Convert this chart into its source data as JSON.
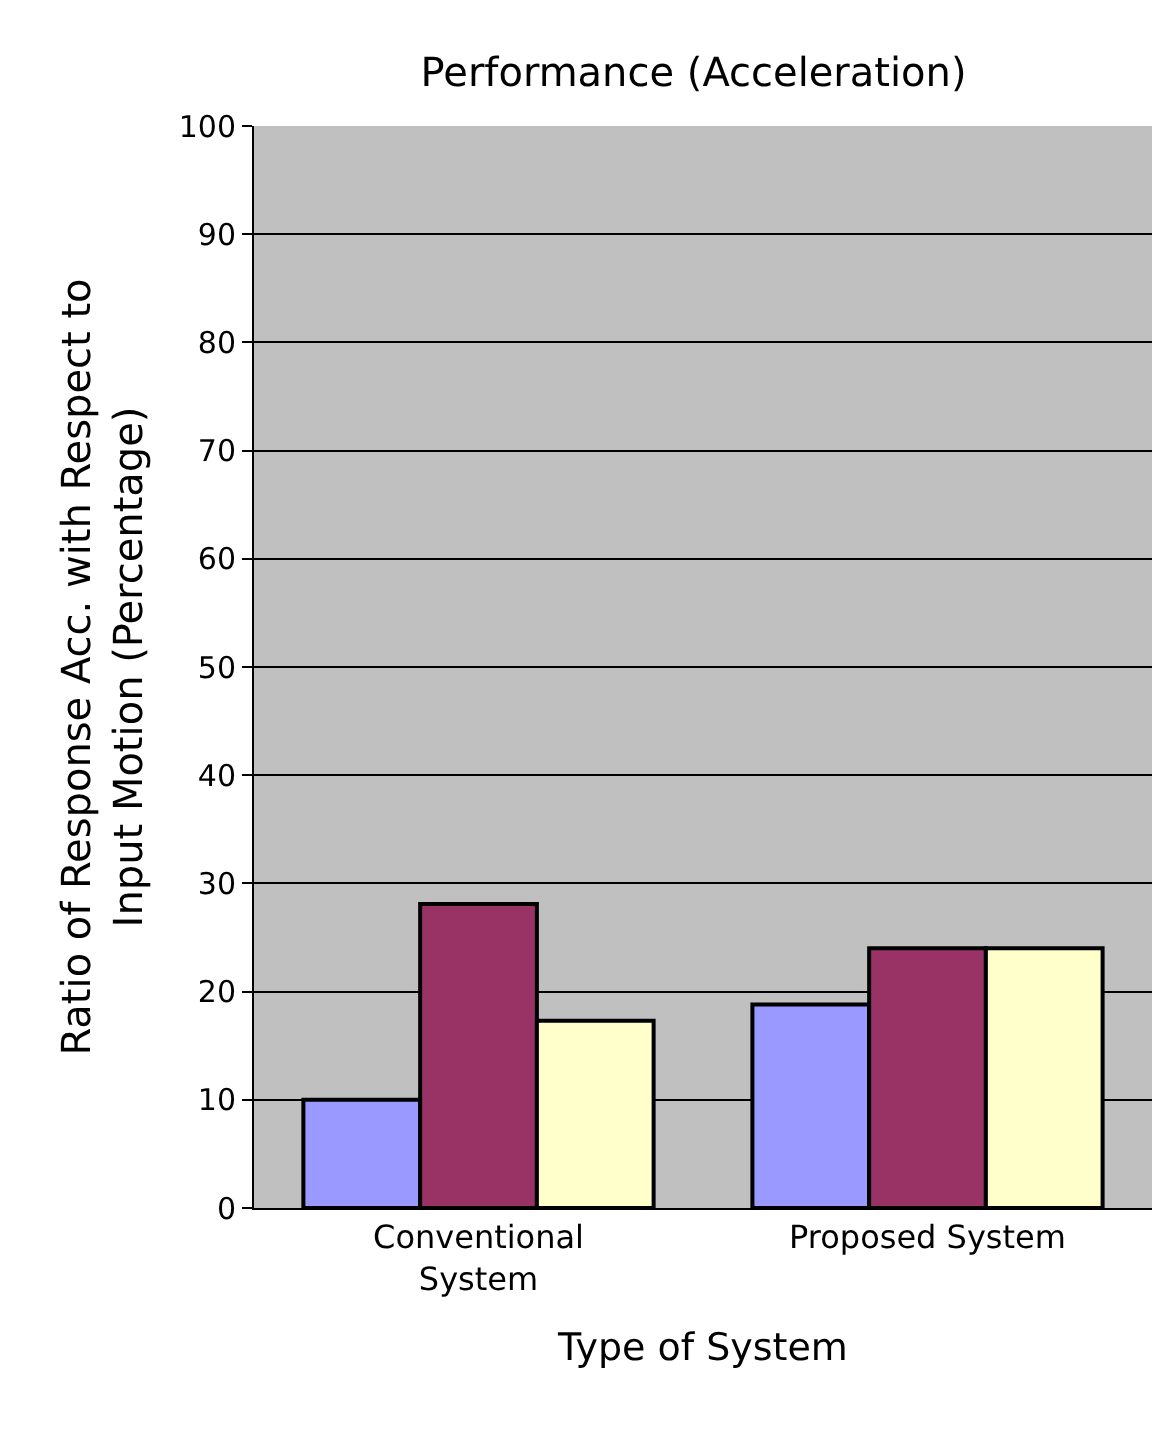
{
  "chart_data": {
    "type": "bar",
    "title": "Performance (Acceleration)",
    "xlabel": "Type of System",
    "ylabel": "Ratio of Response Acc. with Respect to\nInput Motion (Percentage)",
    "categories": [
      "Conventional\nSystem",
      "Proposed System"
    ],
    "series": [
      {
        "color": "#9999ff",
        "values": [
          10.0,
          18.8
        ]
      },
      {
        "color": "#993366",
        "values": [
          28.1,
          24.0
        ]
      },
      {
        "color": "#ffffcc",
        "values": [
          17.3,
          24.0
        ]
      }
    ],
    "ylim": [
      0,
      100
    ],
    "yticks": [
      0,
      10,
      20,
      30,
      40,
      50,
      60,
      70,
      80,
      90,
      100
    ],
    "grid": "y"
  }
}
